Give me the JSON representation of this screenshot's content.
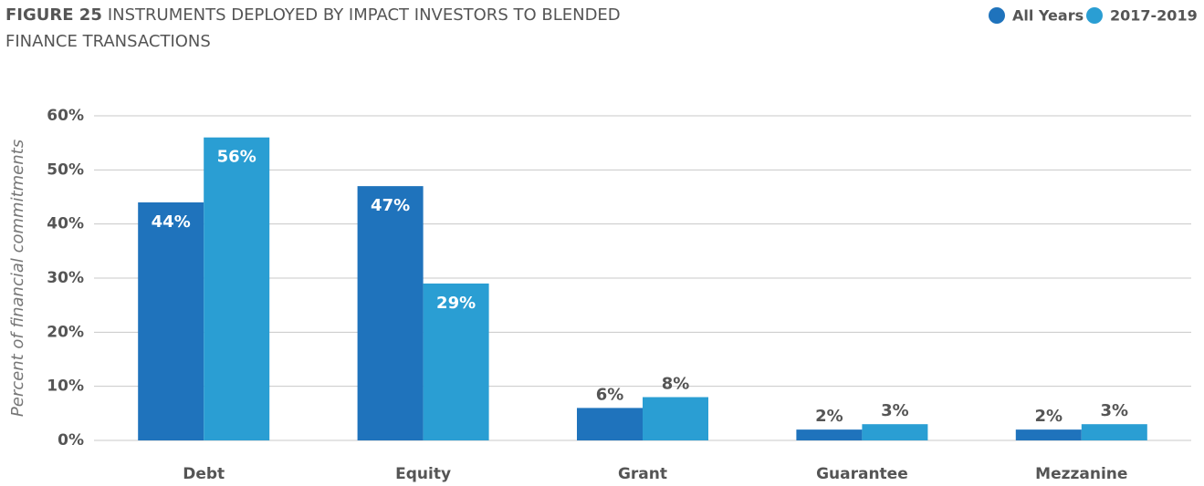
{
  "chart_data": {
    "type": "bar",
    "title_label": "FIGURE 25",
    "title": "INSTRUMENTS DEPLOYED BY IMPACT INVESTORS TO BLENDED",
    "title_line2": "FINANCE TRANSACTIONS",
    "y_label": "Percent of financial commitments",
    "categories": [
      "Debt",
      "Equity",
      "Grant",
      "Guarantee",
      "Mezzanine"
    ],
    "series": [
      {
        "name": "All Years",
        "color": "#1f73bc",
        "values": [
          44,
          47,
          6,
          2,
          2
        ],
        "value_labels": [
          "44%",
          "47%",
          "6%",
          "2%",
          "2%"
        ]
      },
      {
        "name": "2017-2019",
        "color": "#2a9ed3",
        "values": [
          56,
          29,
          8,
          3,
          3
        ],
        "value_labels": [
          "56%",
          "29%",
          "8%",
          "3%",
          "3%"
        ]
      }
    ],
    "ylim": [
      0,
      60
    ],
    "yticks": [
      {
        "value": 0,
        "label": "0%"
      },
      {
        "value": 10,
        "label": "10%"
      },
      {
        "value": 20,
        "label": "20%"
      },
      {
        "value": 30,
        "label": "30%"
      },
      {
        "value": 40,
        "label": "40%"
      },
      {
        "value": 50,
        "label": "50%"
      },
      {
        "value": 60,
        "label": "60%"
      }
    ],
    "grid": true,
    "legend": "top-right"
  }
}
